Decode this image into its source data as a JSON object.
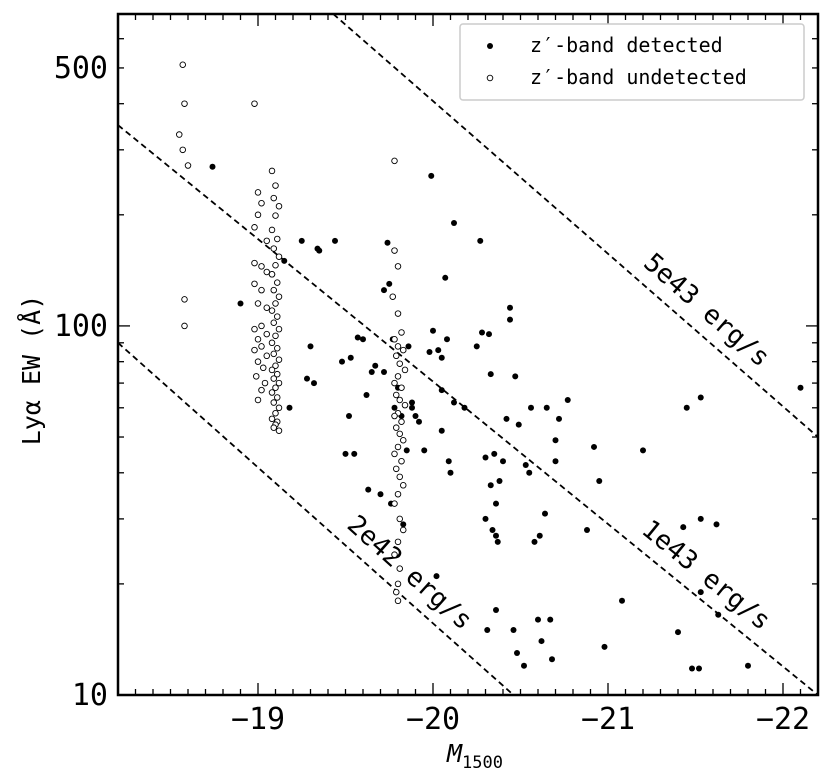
{
  "chart_data": {
    "type": "scatter",
    "xlabel": "M",
    "xlabel_sub": "1500",
    "ylabel": "Lyα EW (Å)",
    "xlim": [
      -18.2,
      -22.2
    ],
    "ylim": [
      10,
      700
    ],
    "yscale": "log",
    "x_ticks": [
      {
        "value": -19,
        "label": "−19"
      },
      {
        "value": -20,
        "label": "−20"
      },
      {
        "value": -21,
        "label": "−21"
      },
      {
        "value": -22,
        "label": "−22"
      }
    ],
    "y_ticks": [
      {
        "value": 10,
        "label": "10"
      },
      {
        "value": 100,
        "label": "100"
      },
      {
        "value": 500,
        "label": "500"
      }
    ],
    "legend": {
      "position": "top-right",
      "entries": [
        "z′-band detected",
        "z′-band undetected"
      ]
    },
    "reference_lines": [
      {
        "label": "2e42 erg/s",
        "x0": -18.2,
        "y0": 90,
        "x1": -20.46,
        "y1": 10
      },
      {
        "label": "1e43 erg/s",
        "x0": -18.2,
        "y0": 350,
        "x1": -22.2,
        "y1": 10
      },
      {
        "label": "5e43 erg/s",
        "x0": -19.43,
        "y0": 700,
        "x1": -22.2,
        "y1": 50
      }
    ],
    "series": [
      {
        "name": "z′-band detected",
        "marker": "filled",
        "points": [
          [
            -18.74,
            270
          ],
          [
            -18.9,
            115
          ],
          [
            -19.15,
            150
          ],
          [
            -19.18,
            60
          ],
          [
            -19.25,
            170
          ],
          [
            -19.28,
            72
          ],
          [
            -19.3,
            88
          ],
          [
            -19.32,
            70
          ],
          [
            -19.34,
            162
          ],
          [
            -19.35,
            160
          ],
          [
            -19.44,
            170
          ],
          [
            -19.48,
            80
          ],
          [
            -19.5,
            45
          ],
          [
            -19.52,
            57
          ],
          [
            -19.53,
            82
          ],
          [
            -19.55,
            45
          ],
          [
            -19.57,
            93
          ],
          [
            -19.6,
            92
          ],
          [
            -19.62,
            65
          ],
          [
            -19.63,
            36
          ],
          [
            -19.65,
            75
          ],
          [
            -19.67,
            78
          ],
          [
            -19.7,
            35
          ],
          [
            -19.72,
            125
          ],
          [
            -19.72,
            75
          ],
          [
            -19.74,
            168
          ],
          [
            -19.75,
            130
          ],
          [
            -19.76,
            33
          ],
          [
            -19.77,
            92
          ],
          [
            -19.78,
            60
          ],
          [
            -19.8,
            68
          ],
          [
            -19.82,
            57
          ],
          [
            -19.83,
            29
          ],
          [
            -19.85,
            46
          ],
          [
            -19.86,
            88
          ],
          [
            -19.88,
            62
          ],
          [
            -19.88,
            60
          ],
          [
            -19.9,
            57
          ],
          [
            -19.92,
            55
          ],
          [
            -19.95,
            46
          ],
          [
            -19.98,
            85
          ],
          [
            -19.99,
            255
          ],
          [
            -20.0,
            97
          ],
          [
            -20.02,
            21
          ],
          [
            -20.03,
            86
          ],
          [
            -20.05,
            67
          ],
          [
            -20.05,
            52
          ],
          [
            -20.05,
            82
          ],
          [
            -20.07,
            135
          ],
          [
            -20.08,
            92
          ],
          [
            -20.09,
            43
          ],
          [
            -20.1,
            40
          ],
          [
            -20.12,
            190
          ],
          [
            -20.12,
            62
          ],
          [
            -20.18,
            60
          ],
          [
            -20.25,
            88
          ],
          [
            -20.27,
            170
          ],
          [
            -20.28,
            96
          ],
          [
            -20.3,
            44
          ],
          [
            -20.3,
            30
          ],
          [
            -20.31,
            15
          ],
          [
            -20.32,
            95
          ],
          [
            -20.33,
            74
          ],
          [
            -20.33,
            37
          ],
          [
            -20.34,
            28
          ],
          [
            -20.35,
            45
          ],
          [
            -20.36,
            17
          ],
          [
            -20.36,
            33
          ],
          [
            -20.36,
            27
          ],
          [
            -20.37,
            26
          ],
          [
            -20.38,
            38
          ],
          [
            -20.4,
            43
          ],
          [
            -20.42,
            56
          ],
          [
            -20.44,
            112
          ],
          [
            -20.44,
            104
          ],
          [
            -20.46,
            15
          ],
          [
            -20.47,
            73
          ],
          [
            -20.48,
            13
          ],
          [
            -20.49,
            54
          ],
          [
            -20.52,
            12
          ],
          [
            -20.53,
            42
          ],
          [
            -20.55,
            40
          ],
          [
            -20.56,
            60
          ],
          [
            -20.58,
            26
          ],
          [
            -20.6,
            16
          ],
          [
            -20.61,
            27
          ],
          [
            -20.62,
            14
          ],
          [
            -20.64,
            31
          ],
          [
            -20.65,
            60
          ],
          [
            -20.67,
            16
          ],
          [
            -20.68,
            12.5
          ],
          [
            -20.7,
            49
          ],
          [
            -20.7,
            43
          ],
          [
            -20.72,
            56
          ],
          [
            -20.77,
            63
          ],
          [
            -20.88,
            28
          ],
          [
            -20.92,
            47
          ],
          [
            -20.95,
            38
          ],
          [
            -20.98,
            13.5
          ],
          [
            -21.08,
            18
          ],
          [
            -21.2,
            46
          ],
          [
            -21.4,
            14.8
          ],
          [
            -21.43,
            28.5
          ],
          [
            -21.45,
            60
          ],
          [
            -21.48,
            11.8
          ],
          [
            -21.52,
            11.8
          ],
          [
            -21.53,
            19
          ],
          [
            -21.53,
            30
          ],
          [
            -21.53,
            64
          ],
          [
            -21.62,
            29
          ],
          [
            -21.63,
            16.5
          ],
          [
            -21.8,
            12
          ],
          [
            -22.1,
            68
          ]
        ]
      },
      {
        "name": "z′-band undetected",
        "marker": "open",
        "points": [
          [
            -18.57,
            510
          ],
          [
            -18.58,
            400
          ],
          [
            -18.55,
            330
          ],
          [
            -18.57,
            300
          ],
          [
            -18.6,
            272
          ],
          [
            -18.58,
            118
          ],
          [
            -18.58,
            100
          ],
          [
            -18.98,
            400
          ],
          [
            -19.0,
            230
          ],
          [
            -19.02,
            215
          ],
          [
            -19.0,
            200
          ],
          [
            -18.98,
            185
          ],
          [
            -19.05,
            170
          ],
          [
            -18.98,
            148
          ],
          [
            -19.02,
            145
          ],
          [
            -19.05,
            140
          ],
          [
            -19.08,
            138
          ],
          [
            -18.98,
            130
          ],
          [
            -19.02,
            125
          ],
          [
            -19.0,
            115
          ],
          [
            -19.05,
            112
          ],
          [
            -19.02,
            100
          ],
          [
            -18.98,
            98
          ],
          [
            -19.05,
            95
          ],
          [
            -19.0,
            92
          ],
          [
            -19.02,
            88
          ],
          [
            -18.98,
            86
          ],
          [
            -19.05,
            83
          ],
          [
            -19.0,
            80
          ],
          [
            -19.03,
            77
          ],
          [
            -18.99,
            73
          ],
          [
            -19.04,
            70
          ],
          [
            -19.02,
            67
          ],
          [
            -19.0,
            63
          ],
          [
            -19.08,
            263
          ],
          [
            -19.1,
            240
          ],
          [
            -19.09,
            222
          ],
          [
            -19.12,
            211
          ],
          [
            -19.1,
            199
          ],
          [
            -19.08,
            182
          ],
          [
            -19.11,
            172
          ],
          [
            -19.09,
            162
          ],
          [
            -19.12,
            154
          ],
          [
            -19.1,
            146
          ],
          [
            -19.08,
            138
          ],
          [
            -19.11,
            131
          ],
          [
            -19.09,
            125
          ],
          [
            -19.12,
            120
          ],
          [
            -19.1,
            115
          ],
          [
            -19.08,
            110
          ],
          [
            -19.11,
            106
          ],
          [
            -19.09,
            102
          ],
          [
            -19.12,
            98
          ],
          [
            -19.1,
            94
          ],
          [
            -19.08,
            90
          ],
          [
            -19.11,
            87
          ],
          [
            -19.09,
            84
          ],
          [
            -19.12,
            81
          ],
          [
            -19.1,
            78
          ],
          [
            -19.08,
            76
          ],
          [
            -19.11,
            74
          ],
          [
            -19.09,
            72
          ],
          [
            -19.12,
            70
          ],
          [
            -19.1,
            68
          ],
          [
            -19.08,
            66
          ],
          [
            -19.11,
            64
          ],
          [
            -19.09,
            62
          ],
          [
            -19.12,
            60
          ],
          [
            -19.1,
            58
          ],
          [
            -19.08,
            56
          ],
          [
            -19.11,
            55
          ],
          [
            -19.1,
            54
          ],
          [
            -19.09,
            53
          ],
          [
            -19.12,
            52
          ],
          [
            -19.78,
            280
          ],
          [
            -19.78,
            160
          ],
          [
            -19.8,
            145
          ],
          [
            -19.77,
            120
          ],
          [
            -19.8,
            108
          ],
          [
            -19.82,
            96
          ],
          [
            -19.78,
            92
          ],
          [
            -19.8,
            88
          ],
          [
            -19.83,
            86
          ],
          [
            -19.79,
            83
          ],
          [
            -19.81,
            79
          ],
          [
            -19.84,
            76
          ],
          [
            -19.8,
            73
          ],
          [
            -19.78,
            70
          ],
          [
            -19.82,
            68
          ],
          [
            -19.79,
            65
          ],
          [
            -19.81,
            63
          ],
          [
            -19.84,
            61
          ],
          [
            -19.8,
            58
          ],
          [
            -19.78,
            57
          ],
          [
            -19.82,
            55
          ],
          [
            -19.79,
            53
          ],
          [
            -19.81,
            51
          ],
          [
            -19.83,
            49
          ],
          [
            -19.8,
            47
          ],
          [
            -19.78,
            45
          ],
          [
            -19.82,
            43
          ],
          [
            -19.79,
            41
          ],
          [
            -19.81,
            39
          ],
          [
            -19.83,
            37
          ],
          [
            -19.8,
            35
          ],
          [
            -19.78,
            33
          ],
          [
            -19.81,
            30
          ],
          [
            -19.83,
            28
          ],
          [
            -19.8,
            26
          ],
          [
            -19.78,
            24
          ],
          [
            -19.81,
            22
          ],
          [
            -19.8,
            20
          ],
          [
            -19.79,
            19
          ],
          [
            -19.8,
            18
          ]
        ]
      }
    ]
  }
}
